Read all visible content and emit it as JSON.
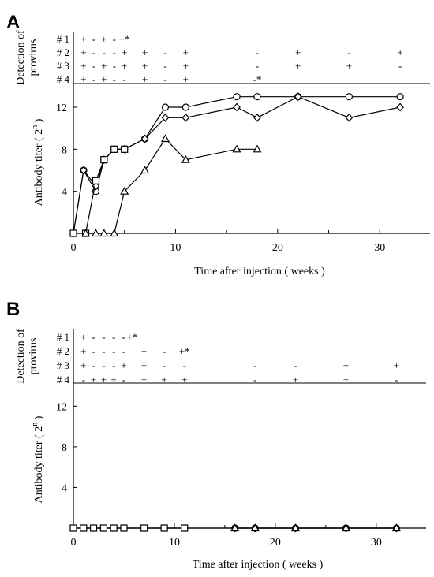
{
  "chart_data": [
    {
      "type": "line",
      "panel_label": "A",
      "xlabel": "Time after injection ( weeks )",
      "ylabel_prefix": "Antibody titer ( 2",
      "ylabel_sup": "n",
      "ylabel_suffix": " )",
      "provirus_label_line1": "Detection of",
      "provirus_label_line2": "provirus",
      "xlim": [
        0,
        34
      ],
      "ylim": [
        0,
        13.5
      ],
      "x_ticks": [
        0,
        10,
        20,
        30
      ],
      "y_ticks": [
        4,
        8,
        12
      ],
      "series": [
        {
          "marker": "circle",
          "x": [
            0,
            1,
            2.2,
            3,
            4,
            5,
            7,
            9,
            11,
            16,
            18,
            22,
            27,
            32
          ],
          "y": [
            0,
            6,
            4,
            7,
            8,
            8,
            9,
            12,
            12,
            13,
            13,
            13,
            13,
            13
          ]
        },
        {
          "marker": "diamond",
          "x": [
            0,
            1,
            2.2,
            3,
            4,
            5,
            7,
            9,
            11,
            16,
            18,
            22,
            27,
            32
          ],
          "y": [
            0,
            6,
            4.5,
            7,
            8,
            8,
            9,
            11,
            11,
            12,
            11,
            13,
            11,
            12
          ]
        },
        {
          "marker": "square",
          "x": [
            0,
            1.2,
            2.2,
            3,
            4,
            5
          ],
          "y": [
            0,
            0,
            5,
            7,
            8,
            8
          ]
        },
        {
          "marker": "triangle",
          "x": [
            1.2,
            2.2,
            3,
            4,
            5,
            7,
            9,
            11,
            16,
            18
          ],
          "y": [
            0,
            0,
            0,
            0,
            4,
            6,
            9,
            7,
            8,
            8
          ]
        }
      ],
      "provirus_rows": [
        {
          "label": "# 1",
          "marks": [
            {
              "x": 1,
              "v": "+"
            },
            {
              "x": 2,
              "v": "-"
            },
            {
              "x": 3,
              "v": "+"
            },
            {
              "x": 4,
              "v": "-"
            },
            {
              "x": 5,
              "v": "+*"
            }
          ]
        },
        {
          "label": "# 2",
          "marks": [
            {
              "x": 1,
              "v": "+"
            },
            {
              "x": 2,
              "v": "-"
            },
            {
              "x": 3,
              "v": "-"
            },
            {
              "x": 4,
              "v": "-"
            },
            {
              "x": 5,
              "v": "+"
            },
            {
              "x": 7,
              "v": "+"
            },
            {
              "x": 9,
              "v": "-"
            },
            {
              "x": 11,
              "v": "+"
            },
            {
              "x": 18,
              "v": "-"
            },
            {
              "x": 22,
              "v": "+"
            },
            {
              "x": 27,
              "v": "-"
            },
            {
              "x": 32,
              "v": "+"
            }
          ]
        },
        {
          "label": "# 3",
          "marks": [
            {
              "x": 1,
              "v": "+"
            },
            {
              "x": 2,
              "v": "-"
            },
            {
              "x": 3,
              "v": "+"
            },
            {
              "x": 4,
              "v": "-"
            },
            {
              "x": 5,
              "v": "+"
            },
            {
              "x": 7,
              "v": "+"
            },
            {
              "x": 9,
              "v": "-"
            },
            {
              "x": 11,
              "v": "+"
            },
            {
              "x": 18,
              "v": "-"
            },
            {
              "x": 22,
              "v": "+"
            },
            {
              "x": 27,
              "v": "+"
            },
            {
              "x": 32,
              "v": "-"
            }
          ]
        },
        {
          "label": "# 4",
          "marks": [
            {
              "x": 1,
              "v": "+"
            },
            {
              "x": 2,
              "v": "-"
            },
            {
              "x": 3,
              "v": "+"
            },
            {
              "x": 4,
              "v": "-"
            },
            {
              "x": 5,
              "v": "-"
            },
            {
              "x": 7,
              "v": "+"
            },
            {
              "x": 9,
              "v": "-"
            },
            {
              "x": 11,
              "v": "+"
            },
            {
              "x": 18,
              "v": "-*"
            }
          ]
        }
      ]
    },
    {
      "type": "line",
      "panel_label": "B",
      "xlabel": "Time after injection ( weeks )",
      "ylabel_prefix": "Antibody titer ( 2",
      "ylabel_sup": "n",
      "ylabel_suffix": " )",
      "provirus_label_line1": "Detection of",
      "provirus_label_line2": "provirus",
      "xlim": [
        0,
        34
      ],
      "ylim": [
        0,
        13.5
      ],
      "x_ticks": [
        0,
        10,
        20,
        30
      ],
      "y_ticks": [
        4,
        8,
        12
      ],
      "series": [
        {
          "marker": "circle",
          "x": [
            0,
            1,
            2,
            3,
            4,
            5,
            7,
            9,
            11,
            16,
            18,
            22,
            27,
            32
          ],
          "y": [
            0,
            0,
            0,
            0,
            0,
            0,
            0,
            0,
            0,
            0,
            0,
            0,
            0,
            0
          ]
        },
        {
          "marker": "diamond",
          "x": [
            16,
            18,
            22,
            27,
            32
          ],
          "y": [
            0,
            0,
            0,
            0,
            0
          ]
        },
        {
          "marker": "square",
          "x": [
            0,
            1,
            2,
            3,
            4,
            5,
            7,
            9,
            11
          ],
          "y": [
            0,
            0,
            0,
            0,
            0,
            0,
            0,
            0,
            0
          ]
        },
        {
          "marker": "triangle",
          "x": [
            16,
            18,
            22,
            27,
            32
          ],
          "y": [
            0,
            0,
            0,
            0,
            0
          ]
        }
      ],
      "provirus_rows": [
        {
          "label": "# 1",
          "marks": [
            {
              "x": 1,
              "v": "+"
            },
            {
              "x": 2,
              "v": "-"
            },
            {
              "x": 3,
              "v": "-"
            },
            {
              "x": 4,
              "v": "-"
            },
            {
              "x": 5,
              "v": "-"
            },
            {
              "x": 5.8,
              "v": "+*"
            }
          ]
        },
        {
          "label": "# 2",
          "marks": [
            {
              "x": 1,
              "v": "+"
            },
            {
              "x": 2,
              "v": "-"
            },
            {
              "x": 3,
              "v": "-"
            },
            {
              "x": 4,
              "v": "-"
            },
            {
              "x": 5,
              "v": "-"
            },
            {
              "x": 7,
              "v": "+"
            },
            {
              "x": 9,
              "v": "-"
            },
            {
              "x": 11,
              "v": "+*"
            }
          ]
        },
        {
          "label": "# 3",
          "marks": [
            {
              "x": 1,
              "v": "+"
            },
            {
              "x": 2,
              "v": "-"
            },
            {
              "x": 3,
              "v": "-"
            },
            {
              "x": 4,
              "v": "-"
            },
            {
              "x": 5,
              "v": "+"
            },
            {
              "x": 7,
              "v": "+"
            },
            {
              "x": 9,
              "v": "-"
            },
            {
              "x": 11,
              "v": "-"
            },
            {
              "x": 18,
              "v": "-"
            },
            {
              "x": 22,
              "v": "-"
            },
            {
              "x": 27,
              "v": "+"
            },
            {
              "x": 32,
              "v": "+"
            }
          ]
        },
        {
          "label": "# 4",
          "marks": [
            {
              "x": 1,
              "v": "-"
            },
            {
              "x": 2,
              "v": "+"
            },
            {
              "x": 3,
              "v": "+"
            },
            {
              "x": 4,
              "v": "+"
            },
            {
              "x": 5,
              "v": "-"
            },
            {
              "x": 7,
              "v": "+"
            },
            {
              "x": 9,
              "v": "+"
            },
            {
              "x": 11,
              "v": "+"
            },
            {
              "x": 18,
              "v": "-"
            },
            {
              "x": 22,
              "v": "+"
            },
            {
              "x": 27,
              "v": "+"
            },
            {
              "x": 32,
              "v": "-"
            }
          ]
        }
      ]
    }
  ]
}
